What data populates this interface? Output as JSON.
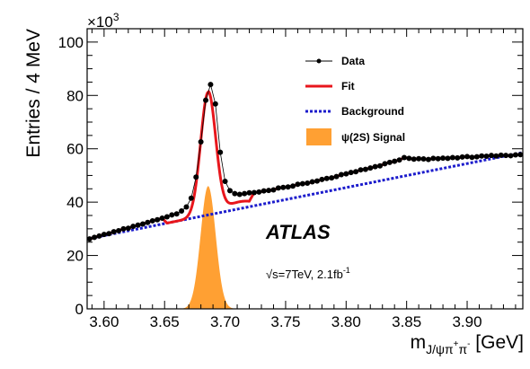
{
  "chart_data": {
    "type": "line",
    "xlabel_main": "m",
    "xlabel_sub": "J/ψπ",
    "xlabel_sup1": "+",
    "xlabel_mid": "π",
    "xlabel_sup2": "-",
    "xlabel_unit": " [GeV]",
    "ylabel": "Entries / 4 MeV",
    "y_multiplier_base": "×10",
    "y_multiplier_exp": "3",
    "xlim": [
      3.586,
      3.946
    ],
    "ylim": [
      0,
      105
    ],
    "xticks": [
      3.6,
      3.65,
      3.7,
      3.75,
      3.8,
      3.85,
      3.9
    ],
    "xtick_labels": [
      "3.60",
      "3.65",
      "3.70",
      "3.75",
      "3.80",
      "3.85",
      "3.90"
    ],
    "yticks": [
      0,
      20,
      40,
      60,
      80,
      100
    ],
    "ytick_labels": [
      "0",
      "20",
      "40",
      "60",
      "80",
      "100"
    ],
    "legend_position": "top-right",
    "legend": [
      {
        "key": "data",
        "label": "Data"
      },
      {
        "key": "fit",
        "label": "Fit"
      },
      {
        "key": "background",
        "label": "Background"
      },
      {
        "key": "signal",
        "label": "ψ(2S) Signal"
      }
    ],
    "annotations": {
      "experiment": "ATLAS",
      "energy_sqrt": "√s",
      "energy_text": "=7TeV, 2.1fb",
      "energy_sup": "-1"
    },
    "colors": {
      "data": "#000000",
      "fit": "#e8161c",
      "background": "#1c1ccc",
      "signal": "#ffa033"
    },
    "signal": {
      "mass": 3.686,
      "sigma": 0.0062,
      "peak": 46
    },
    "background": {
      "x0": 3.586,
      "y0": 26.2,
      "slope": 90,
      "x1": 3.946
    },
    "series": [
      {
        "key": "data",
        "x": [
          3.588,
          3.592,
          3.596,
          3.6,
          3.604,
          3.608,
          3.612,
          3.616,
          3.62,
          3.624,
          3.628,
          3.632,
          3.636,
          3.64,
          3.644,
          3.648,
          3.652,
          3.656,
          3.66,
          3.664,
          3.668,
          3.672,
          3.676,
          3.68,
          3.684,
          3.688,
          3.692,
          3.696,
          3.7,
          3.704,
          3.708,
          3.712,
          3.716,
          3.72,
          3.724,
          3.728,
          3.732,
          3.736,
          3.74,
          3.744,
          3.748,
          3.752,
          3.756,
          3.76,
          3.764,
          3.768,
          3.772,
          3.776,
          3.78,
          3.784,
          3.788,
          3.792,
          3.796,
          3.8,
          3.804,
          3.808,
          3.812,
          3.816,
          3.82,
          3.824,
          3.828,
          3.832,
          3.836,
          3.84,
          3.844,
          3.848,
          3.852,
          3.856,
          3.86,
          3.864,
          3.868,
          3.872,
          3.876,
          3.88,
          3.884,
          3.888,
          3.892,
          3.896,
          3.9,
          3.904,
          3.908,
          3.912,
          3.916,
          3.92,
          3.924,
          3.928,
          3.932,
          3.936,
          3.94,
          3.944
        ],
        "y": [
          26.2,
          26.8,
          27.3,
          27.9,
          28.2,
          28.9,
          29.3,
          30.0,
          30.2,
          30.9,
          31.4,
          31.8,
          32.4,
          33.0,
          33.4,
          34.0,
          34.5,
          35.2,
          35.6,
          36.7,
          38.2,
          41.5,
          49.4,
          62.6,
          78.2,
          84.1,
          76.8,
          58.7,
          47.8,
          44.3,
          43.2,
          42.9,
          43.2,
          43.5,
          43.6,
          43.8,
          44.2,
          44.4,
          44.6,
          45.3,
          45.5,
          45.7,
          46.0,
          46.7,
          46.9,
          47.1,
          47.6,
          47.9,
          48.5,
          48.9,
          49.1,
          49.6,
          50.3,
          50.6,
          51.1,
          51.4,
          52.1,
          52.3,
          52.8,
          53.3,
          53.6,
          54.4,
          54.9,
          55.3,
          55.8,
          56.7,
          56.4,
          56.1,
          56.3,
          56.2,
          56.0,
          56.4,
          56.3,
          56.5,
          56.4,
          56.7,
          56.6,
          56.9,
          57.1,
          56.8,
          57.0,
          57.3,
          57.2,
          57.5,
          57.3,
          57.6,
          57.5,
          57.4,
          57.7,
          57.8
        ]
      }
    ]
  }
}
